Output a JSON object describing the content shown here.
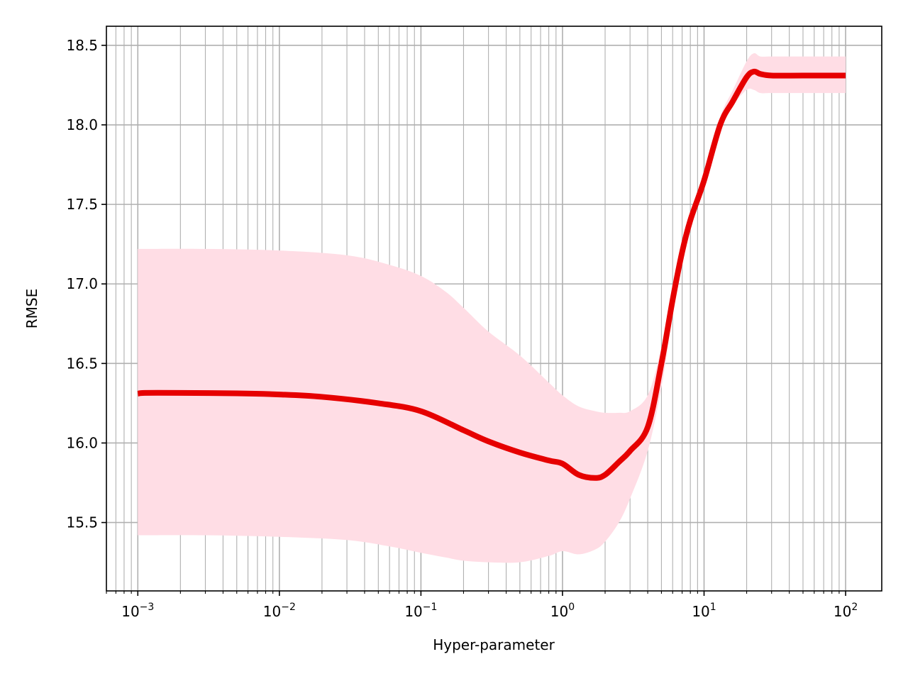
{
  "chart_data": {
    "type": "line",
    "title": "",
    "xlabel": "Hyper-parameter",
    "ylabel": "RMSE",
    "xscale": "log",
    "xlim": [
      0.0006,
      180
    ],
    "ylim": [
      15.07,
      18.62
    ],
    "grid": "major and minor on x, major on y",
    "x_ticks": [
      {
        "value": 0.001,
        "base": "10",
        "exp": "−3"
      },
      {
        "value": 0.01,
        "base": "10",
        "exp": "−2"
      },
      {
        "value": 0.1,
        "base": "10",
        "exp": "−1"
      },
      {
        "value": 1,
        "base": "10",
        "exp": "0"
      },
      {
        "value": 10,
        "base": "10",
        "exp": "1"
      },
      {
        "value": 100,
        "base": "10",
        "exp": "2"
      }
    ],
    "y_ticks": [
      {
        "value": 15.5,
        "label": "15.5"
      },
      {
        "value": 16.0,
        "label": "16.0"
      },
      {
        "value": 16.5,
        "label": "16.5"
      },
      {
        "value": 17.0,
        "label": "17.0"
      },
      {
        "value": 17.5,
        "label": "17.5"
      },
      {
        "value": 18.0,
        "label": "18.0"
      },
      {
        "value": 18.5,
        "label": "18.5"
      }
    ],
    "series": [
      {
        "color": "#e60000",
        "x": [
          0.001,
          0.00112,
          0.002,
          0.005,
          0.01,
          0.02,
          0.05,
          0.1,
          0.2,
          0.3,
          0.5,
          0.8,
          1.0,
          1.3,
          1.7,
          2.0,
          2.5,
          3.0,
          4.0,
          5.0,
          6.0,
          7.0,
          8.0,
          10.0,
          13.0,
          16.0,
          20.0,
          22.5,
          25.0,
          30.0,
          50.0,
          100.0
        ],
        "y": [
          16.31,
          16.315,
          16.315,
          16.312,
          16.305,
          16.29,
          16.25,
          16.2,
          16.08,
          16.01,
          15.94,
          15.89,
          15.87,
          15.8,
          15.78,
          15.8,
          15.88,
          15.95,
          16.1,
          16.5,
          16.9,
          17.2,
          17.4,
          17.65,
          18.0,
          18.15,
          18.3,
          18.335,
          18.32,
          18.31,
          18.31,
          18.31
        ]
      }
    ],
    "band": {
      "color": "#ffdde5",
      "x": [
        0.001,
        0.003,
        0.01,
        0.03,
        0.06,
        0.1,
        0.15,
        0.2,
        0.3,
        0.5,
        0.8,
        1.0,
        1.3,
        1.7,
        2.0,
        2.5,
        3.0,
        4.0,
        5.0,
        6.0,
        7.0,
        8.0,
        10.0,
        13.0,
        16.0,
        20.0,
        22.5,
        25.0,
        30.0,
        50.0,
        100.0
      ],
      "upper": [
        17.22,
        17.22,
        17.21,
        17.18,
        17.12,
        17.05,
        16.95,
        16.85,
        16.7,
        16.55,
        16.38,
        16.3,
        16.23,
        16.2,
        16.19,
        16.19,
        16.2,
        16.3,
        16.6,
        16.95,
        17.25,
        17.45,
        17.7,
        18.05,
        18.22,
        18.4,
        18.45,
        18.43,
        18.43,
        18.43,
        18.43
      ],
      "lower": [
        15.42,
        15.42,
        15.41,
        15.39,
        15.35,
        15.31,
        15.28,
        15.26,
        15.25,
        15.25,
        15.29,
        15.32,
        15.3,
        15.33,
        15.38,
        15.5,
        15.65,
        15.95,
        16.35,
        16.8,
        17.15,
        17.35,
        17.6,
        17.95,
        18.12,
        18.22,
        18.22,
        18.2,
        18.2,
        18.2,
        18.2
      ]
    }
  }
}
